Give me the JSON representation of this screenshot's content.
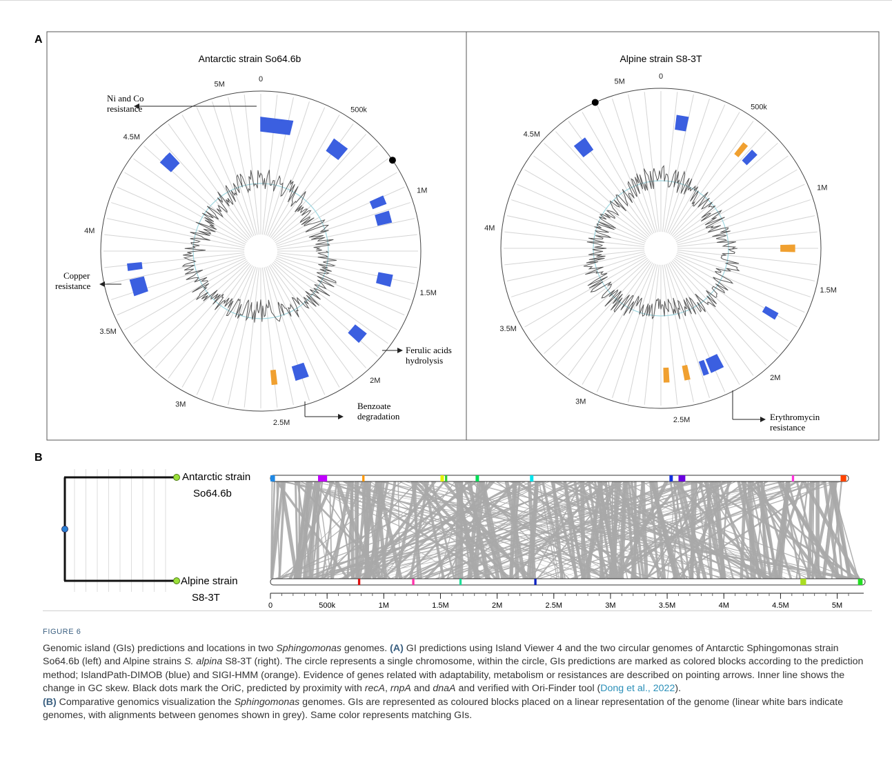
{
  "figure": {
    "panel_a_label": "A",
    "panel_b_label": "B",
    "label": "FIGURE 6",
    "caption": {
      "p1": "Genomic island (GIs) predictions and locations in two ",
      "p1_em": "Sphingomonas",
      "p2": " genomes. ",
      "a_tag": "(A)",
      "p3": " GI predictions using Island Viewer 4 and the two circular genomes of Antarctic Sphingomonas strain So64.6b (left) and Alpine strains ",
      "p3_em": "S. alpina",
      "p4": " S8-3T (right). The circle represents a single chromosome, within the circle, GIs predictions are marked as colored blocks according to the prediction method; IslandPath-DIMOB (blue) and SIGI-HMM (orange). Evidence of genes related with adaptability, metabolism or resistances are described on pointing arrows. Inner line shows the change in GC skew. Black dots mark the OriC, predicted by proximity with ",
      "g1": "recA",
      "sep1": ", ",
      "g2": "rnpA",
      "sep2": " and ",
      "g3": "dnaA",
      "p5": " and verified with Ori-Finder tool (",
      "ref": "Dong et al., 2022",
      "p6": ").",
      "b_tag": "(B)",
      "p7": " Comparative genomics visualization the ",
      "p7_em": "Sphingomonas",
      "p8": " genomes. GIs are represented as coloured blocks placed on a linear representation of the genome (linear white bars indicate genomes, with alignments between genomes shown in grey). Same color represents matching GIs."
    }
  },
  "panel_a": {
    "left": {
      "title": "Antarctic strain So64.6b",
      "ticks": [
        "0",
        "500k",
        "1M",
        "1.5M",
        "2M",
        "2.5M",
        "3M",
        "3.5M",
        "4M",
        "4.5M",
        "5M"
      ],
      "genome_mb": 5.2,
      "oric_mb": 0.8,
      "islands_blue": [
        [
          0.0,
          0.2
        ],
        [
          0.48,
          0.58
        ],
        [
          0.95,
          1.0
        ],
        [
          1.05,
          1.12
        ],
        [
          1.45,
          1.52
        ],
        [
          1.85,
          1.92
        ],
        [
          2.3,
          2.38
        ],
        [
          3.62,
          3.72
        ],
        [
          3.78,
          3.82
        ],
        [
          4.5,
          4.55
        ],
        [
          4.55,
          4.58
        ]
      ],
      "islands_orange": [
        [
          2.5,
          2.53
        ]
      ],
      "annotations": [
        {
          "lines": [
            "Ni and Co",
            "resistance"
          ]
        },
        {
          "lines": [
            "Copper",
            "resistance"
          ]
        },
        {
          "lines": [
            "Ferulic acids",
            "hydrolysis"
          ]
        },
        {
          "lines": [
            "Benzoate",
            "degradation"
          ]
        }
      ]
    },
    "right": {
      "title": "Alpine strain S8-3T",
      "ticks": [
        "0",
        "500k",
        "1M",
        "1.5M",
        "2M",
        "2.5M",
        "3M",
        "3.5M",
        "4M",
        "4.5M",
        "5M"
      ],
      "genome_mb": 5.2,
      "oric_mb": 4.85,
      "islands_blue": [
        [
          0.1,
          0.17
        ],
        [
          0.62,
          0.66
        ],
        [
          1.72,
          1.76
        ],
        [
          2.2,
          2.28
        ],
        [
          2.3,
          2.33
        ],
        [
          4.62,
          4.7
        ]
      ],
      "islands_orange": [
        [
          0.55,
          0.58
        ],
        [
          1.28,
          1.32
        ],
        [
          2.42,
          2.45
        ],
        [
          2.55,
          2.58
        ]
      ],
      "annotations": [
        {
          "lines": [
            "Erythromycin",
            "resistance"
          ]
        }
      ]
    }
  },
  "panel_b": {
    "strain_top": {
      "line1": "Antarctic strain",
      "line2": "So64.6b"
    },
    "strain_bottom": {
      "line1": "Alpine strain",
      "line2": "S8-3T"
    },
    "axis_ticks": [
      "0",
      "500k",
      "1M",
      "1.5M",
      "2M",
      "2.5M",
      "3M",
      "3.5M",
      "4M",
      "4.5M",
      "5M"
    ],
    "axis_max_mb": 5.1,
    "top_blocks": [
      {
        "start": 0.0,
        "end": 0.04,
        "color": "#1e88e5"
      },
      {
        "start": 0.42,
        "end": 0.5,
        "color": "#c000ff"
      },
      {
        "start": 0.81,
        "end": 0.83,
        "color": "#ff9800"
      },
      {
        "start": 1.5,
        "end": 1.53,
        "color": "#e3f200"
      },
      {
        "start": 1.54,
        "end": 1.56,
        "color": "#33cc33"
      },
      {
        "start": 1.81,
        "end": 1.84,
        "color": "#00dd55"
      },
      {
        "start": 2.29,
        "end": 2.32,
        "color": "#00e5ee"
      },
      {
        "start": 3.52,
        "end": 3.55,
        "color": "#1230e0"
      },
      {
        "start": 3.6,
        "end": 3.66,
        "color": "#6a00e0"
      },
      {
        "start": 4.6,
        "end": 4.62,
        "color": "#ff33dd"
      },
      {
        "start": 5.03,
        "end": 5.08,
        "color": "#ff4400"
      }
    ],
    "bottom_blocks": [
      {
        "start": 0.76,
        "end": 0.78,
        "color": "#dd1111"
      },
      {
        "start": 1.23,
        "end": 1.25,
        "color": "#ff33aa"
      },
      {
        "start": 1.64,
        "end": 1.66,
        "color": "#22dd99"
      },
      {
        "start": 2.29,
        "end": 2.31,
        "color": "#0a20c0"
      },
      {
        "start": 4.6,
        "end": 4.65,
        "color": "#aadd22"
      },
      {
        "start": 5.1,
        "end": 5.14,
        "color": "#22dd22"
      }
    ]
  }
}
